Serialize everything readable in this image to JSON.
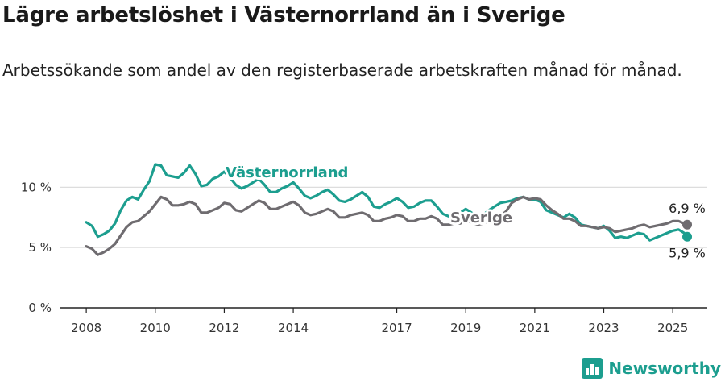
{
  "title": "Lägre arbetslöshet i Västernorrland än i Sverige",
  "subtitle": "Arbetssökande som andel av den registerbaserade arbetskraften månad för månad.",
  "brand": {
    "name": "Newsworthy",
    "icon": "newsworthy-logo-icon"
  },
  "colors": {
    "vasternorrland": "#1c9e8f",
    "sverige": "#6f6c70",
    "grid": "#dddddd",
    "axis": "#222222"
  },
  "chart_data": {
    "type": "line",
    "x_type": "date",
    "ylim": [
      0,
      12.5
    ],
    "xlim": [
      "2007-04",
      "2026-01"
    ],
    "yticks": [
      0,
      5,
      10
    ],
    "ytick_labels": [
      "0 %",
      "5 %",
      "10 %"
    ],
    "xticks": [
      "2008",
      "2010",
      "2012",
      "2014",
      "2017",
      "2019",
      "2021",
      "2023",
      "2025"
    ],
    "grid": true,
    "series": [
      {
        "name": "Västernorrland",
        "color": "#1c9e8f",
        "end_label": "5,9 %",
        "points": [
          [
            "2008-01",
            7.1
          ],
          [
            "2008-03",
            6.8
          ],
          [
            "2008-05",
            5.9
          ],
          [
            "2008-07",
            6.1
          ],
          [
            "2008-09",
            6.4
          ],
          [
            "2008-11",
            7.0
          ],
          [
            "2009-01",
            8.1
          ],
          [
            "2009-03",
            8.9
          ],
          [
            "2009-05",
            9.2
          ],
          [
            "2009-07",
            9.0
          ],
          [
            "2009-09",
            9.8
          ],
          [
            "2009-11",
            10.5
          ],
          [
            "2010-01",
            11.9
          ],
          [
            "2010-03",
            11.8
          ],
          [
            "2010-05",
            11.0
          ],
          [
            "2010-07",
            10.9
          ],
          [
            "2010-09",
            10.8
          ],
          [
            "2010-11",
            11.2
          ],
          [
            "2011-01",
            11.8
          ],
          [
            "2011-03",
            11.1
          ],
          [
            "2011-05",
            10.1
          ],
          [
            "2011-07",
            10.2
          ],
          [
            "2011-09",
            10.7
          ],
          [
            "2011-11",
            10.9
          ],
          [
            "2012-01",
            11.3
          ],
          [
            "2012-03",
            10.8
          ],
          [
            "2012-05",
            10.2
          ],
          [
            "2012-07",
            9.9
          ],
          [
            "2012-09",
            10.1
          ],
          [
            "2012-11",
            10.4
          ],
          [
            "2013-01",
            10.7
          ],
          [
            "2013-03",
            10.2
          ],
          [
            "2013-05",
            9.6
          ],
          [
            "2013-07",
            9.6
          ],
          [
            "2013-09",
            9.9
          ],
          [
            "2013-11",
            10.1
          ],
          [
            "2014-01",
            10.4
          ],
          [
            "2014-03",
            9.9
          ],
          [
            "2014-05",
            9.3
          ],
          [
            "2014-07",
            9.1
          ],
          [
            "2014-09",
            9.3
          ],
          [
            "2014-11",
            9.6
          ],
          [
            "2015-01",
            9.8
          ],
          [
            "2015-03",
            9.4
          ],
          [
            "2015-05",
            8.9
          ],
          [
            "2015-07",
            8.8
          ],
          [
            "2015-09",
            9.0
          ],
          [
            "2015-11",
            9.3
          ],
          [
            "2016-01",
            9.6
          ],
          [
            "2016-03",
            9.2
          ],
          [
            "2016-05",
            8.4
          ],
          [
            "2016-07",
            8.3
          ],
          [
            "2016-09",
            8.6
          ],
          [
            "2016-11",
            8.8
          ],
          [
            "2017-01",
            9.1
          ],
          [
            "2017-03",
            8.8
          ],
          [
            "2017-05",
            8.3
          ],
          [
            "2017-07",
            8.4
          ],
          [
            "2017-09",
            8.7
          ],
          [
            "2017-11",
            8.9
          ],
          [
            "2018-01",
            8.9
          ],
          [
            "2018-03",
            8.4
          ],
          [
            "2018-05",
            7.8
          ],
          [
            "2018-07",
            7.6
          ],
          [
            "2018-09",
            7.8
          ],
          [
            "2018-11",
            7.9
          ],
          [
            "2019-01",
            8.2
          ],
          [
            "2019-03",
            7.9
          ],
          [
            "2019-05",
            7.5
          ],
          [
            "2019-07",
            7.7
          ],
          [
            "2019-09",
            8.1
          ],
          [
            "2019-11",
            8.4
          ],
          [
            "2020-01",
            8.7
          ],
          [
            "2020-03",
            8.8
          ],
          [
            "2020-05",
            8.9
          ],
          [
            "2020-07",
            9.1
          ],
          [
            "2020-09",
            9.2
          ],
          [
            "2020-11",
            9.0
          ],
          [
            "2021-01",
            9.0
          ],
          [
            "2021-03",
            8.8
          ],
          [
            "2021-05",
            8.1
          ],
          [
            "2021-07",
            7.9
          ],
          [
            "2021-09",
            7.7
          ],
          [
            "2021-11",
            7.5
          ],
          [
            "2022-01",
            7.8
          ],
          [
            "2022-03",
            7.5
          ],
          [
            "2022-05",
            6.9
          ],
          [
            "2022-07",
            6.8
          ],
          [
            "2022-09",
            6.7
          ],
          [
            "2022-11",
            6.6
          ],
          [
            "2023-01",
            6.8
          ],
          [
            "2023-03",
            6.4
          ],
          [
            "2023-05",
            5.8
          ],
          [
            "2023-07",
            5.9
          ],
          [
            "2023-09",
            5.8
          ],
          [
            "2023-11",
            6.0
          ],
          [
            "2024-01",
            6.2
          ],
          [
            "2024-03",
            6.1
          ],
          [
            "2024-05",
            5.6
          ],
          [
            "2024-07",
            5.8
          ],
          [
            "2024-09",
            6.0
          ],
          [
            "2024-11",
            6.2
          ],
          [
            "2025-01",
            6.4
          ],
          [
            "2025-03",
            6.5
          ],
          [
            "2025-05",
            6.2
          ],
          [
            "2025-06",
            5.9
          ]
        ]
      },
      {
        "name": "Sverige",
        "color": "#6f6c70",
        "end_label": "6,9 %",
        "points": [
          [
            "2008-01",
            5.1
          ],
          [
            "2008-03",
            4.9
          ],
          [
            "2008-05",
            4.4
          ],
          [
            "2008-07",
            4.6
          ],
          [
            "2008-09",
            4.9
          ],
          [
            "2008-11",
            5.3
          ],
          [
            "2009-01",
            6.0
          ],
          [
            "2009-03",
            6.7
          ],
          [
            "2009-05",
            7.1
          ],
          [
            "2009-07",
            7.2
          ],
          [
            "2009-09",
            7.6
          ],
          [
            "2009-11",
            8.0
          ],
          [
            "2010-01",
            8.6
          ],
          [
            "2010-03",
            9.2
          ],
          [
            "2010-05",
            9.0
          ],
          [
            "2010-07",
            8.5
          ],
          [
            "2010-09",
            8.5
          ],
          [
            "2010-11",
            8.6
          ],
          [
            "2011-01",
            8.8
          ],
          [
            "2011-03",
            8.6
          ],
          [
            "2011-05",
            7.9
          ],
          [
            "2011-07",
            7.9
          ],
          [
            "2011-09",
            8.1
          ],
          [
            "2011-11",
            8.3
          ],
          [
            "2012-01",
            8.7
          ],
          [
            "2012-03",
            8.6
          ],
          [
            "2012-05",
            8.1
          ],
          [
            "2012-07",
            8.0
          ],
          [
            "2012-09",
            8.3
          ],
          [
            "2012-11",
            8.6
          ],
          [
            "2013-01",
            8.9
          ],
          [
            "2013-03",
            8.7
          ],
          [
            "2013-05",
            8.2
          ],
          [
            "2013-07",
            8.2
          ],
          [
            "2013-09",
            8.4
          ],
          [
            "2013-11",
            8.6
          ],
          [
            "2014-01",
            8.8
          ],
          [
            "2014-03",
            8.5
          ],
          [
            "2014-05",
            7.9
          ],
          [
            "2014-07",
            7.7
          ],
          [
            "2014-09",
            7.8
          ],
          [
            "2014-11",
            8.0
          ],
          [
            "2015-01",
            8.2
          ],
          [
            "2015-03",
            8.0
          ],
          [
            "2015-05",
            7.5
          ],
          [
            "2015-07",
            7.5
          ],
          [
            "2015-09",
            7.7
          ],
          [
            "2015-11",
            7.8
          ],
          [
            "2016-01",
            7.9
          ],
          [
            "2016-03",
            7.7
          ],
          [
            "2016-05",
            7.2
          ],
          [
            "2016-07",
            7.2
          ],
          [
            "2016-09",
            7.4
          ],
          [
            "2016-11",
            7.5
          ],
          [
            "2017-01",
            7.7
          ],
          [
            "2017-03",
            7.6
          ],
          [
            "2017-05",
            7.2
          ],
          [
            "2017-07",
            7.2
          ],
          [
            "2017-09",
            7.4
          ],
          [
            "2017-11",
            7.4
          ],
          [
            "2018-01",
            7.6
          ],
          [
            "2018-03",
            7.4
          ],
          [
            "2018-05",
            6.9
          ],
          [
            "2018-07",
            6.9
          ],
          [
            "2018-09",
            7.0
          ],
          [
            "2018-11",
            7.0
          ],
          [
            "2019-01",
            7.2
          ],
          [
            "2019-03",
            7.1
          ],
          [
            "2019-05",
            6.9
          ],
          [
            "2019-07",
            7.0
          ],
          [
            "2019-09",
            7.2
          ],
          [
            "2019-11",
            7.4
          ],
          [
            "2020-01",
            7.6
          ],
          [
            "2020-03",
            8.0
          ],
          [
            "2020-05",
            8.7
          ],
          [
            "2020-07",
            9.0
          ],
          [
            "2020-09",
            9.2
          ],
          [
            "2020-11",
            9.0
          ],
          [
            "2021-01",
            9.1
          ],
          [
            "2021-03",
            9.0
          ],
          [
            "2021-05",
            8.5
          ],
          [
            "2021-07",
            8.1
          ],
          [
            "2021-09",
            7.8
          ],
          [
            "2021-11",
            7.4
          ],
          [
            "2022-01",
            7.4
          ],
          [
            "2022-03",
            7.2
          ],
          [
            "2022-05",
            6.8
          ],
          [
            "2022-07",
            6.8
          ],
          [
            "2022-09",
            6.7
          ],
          [
            "2022-11",
            6.6
          ],
          [
            "2023-01",
            6.7
          ],
          [
            "2023-03",
            6.6
          ],
          [
            "2023-05",
            6.3
          ],
          [
            "2023-07",
            6.4
          ],
          [
            "2023-09",
            6.5
          ],
          [
            "2023-11",
            6.6
          ],
          [
            "2024-01",
            6.8
          ],
          [
            "2024-03",
            6.9
          ],
          [
            "2024-05",
            6.7
          ],
          [
            "2024-07",
            6.8
          ],
          [
            "2024-09",
            6.9
          ],
          [
            "2024-11",
            7.0
          ],
          [
            "2025-01",
            7.2
          ],
          [
            "2025-03",
            7.2
          ],
          [
            "2025-05",
            7.0
          ],
          [
            "2025-06",
            6.9
          ]
        ]
      }
    ]
  }
}
